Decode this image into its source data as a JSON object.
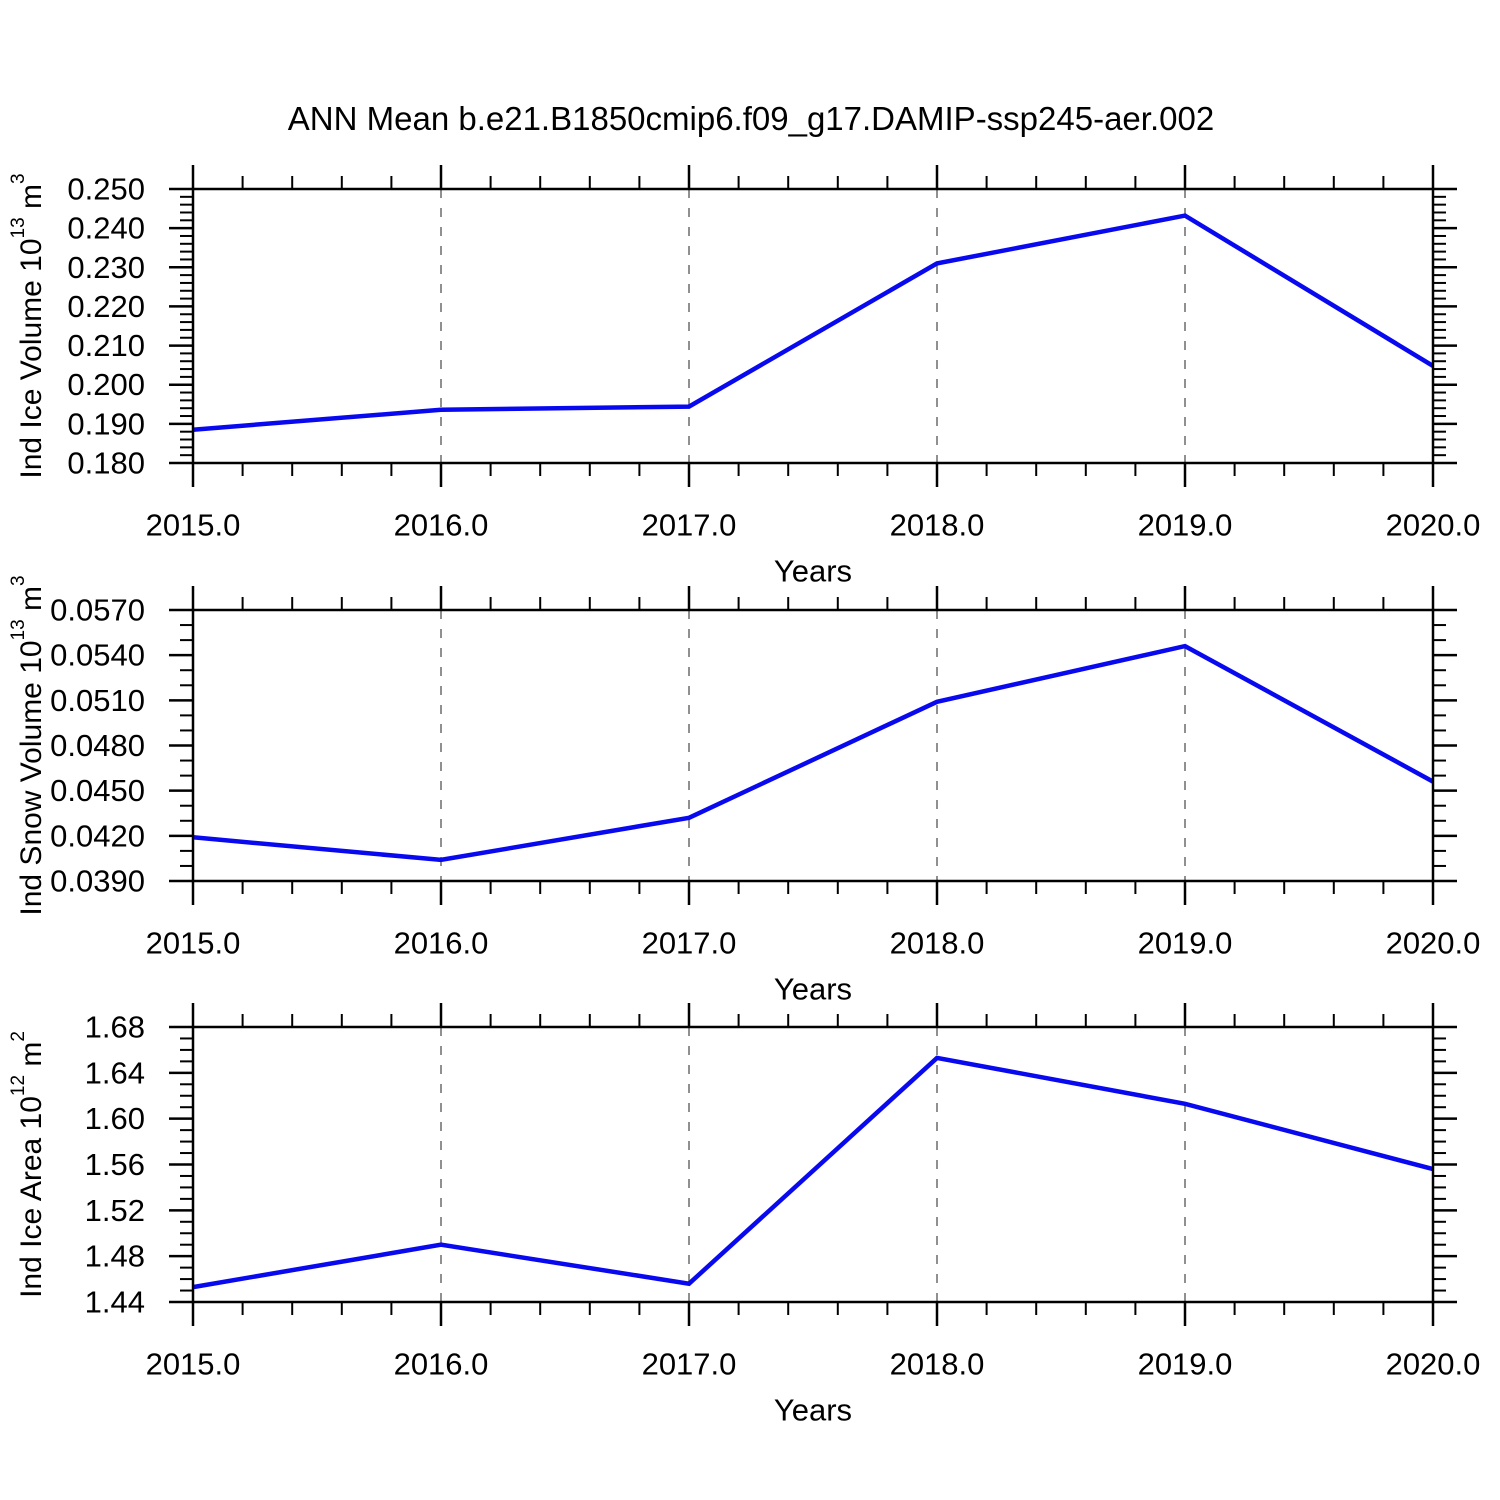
{
  "title": "ANN Mean b.e21.B1850cmip6.f09_g17.DAMIP-ssp245-aer.002",
  "line_color": "#0909f0",
  "grid_color": "#848484",
  "axis_color": "#000000",
  "chart_data": [
    {
      "type": "line",
      "ylabel": "Ind Ice Volume 10^13 m^3",
      "ylabel_parts": [
        {
          "text": "Ind Ice Volume 10"
        },
        {
          "text": "13",
          "sup": true
        },
        {
          "text": " m"
        },
        {
          "text": "3",
          "sup": true
        }
      ],
      "xlabel": "Years",
      "x": [
        2015,
        2016,
        2017,
        2018,
        2019,
        2020
      ],
      "values": [
        0.1885,
        0.1936,
        0.1944,
        0.231,
        0.2432,
        0.2048
      ],
      "xlim": [
        2015,
        2020
      ],
      "ylim": [
        0.18,
        0.25
      ],
      "xticks": [
        2015,
        2016,
        2017,
        2018,
        2019,
        2020
      ],
      "xtick_labels": [
        "2015.0",
        "2016.0",
        "2017.0",
        "2018.0",
        "2019.0",
        "2020.0"
      ],
      "yticks": [
        0.18,
        0.19,
        0.2,
        0.21,
        0.22,
        0.23,
        0.24,
        0.25
      ],
      "ytick_labels": [
        "0.180",
        "0.190",
        "0.200",
        "0.210",
        "0.220",
        "0.230",
        "0.240",
        "0.250"
      ],
      "minor_x_divisions": 5,
      "minor_y_divisions": 5,
      "grid_x": [
        2016,
        2017,
        2018,
        2019
      ],
      "grid_style": "dashed",
      "legend": null
    },
    {
      "type": "line",
      "ylabel": "Ind Snow Volume 10^13 m^3",
      "ylabel_parts": [
        {
          "text": "Ind Snow Volume 10"
        },
        {
          "text": "13",
          "sup": true
        },
        {
          "text": " m"
        },
        {
          "text": "3",
          "sup": true
        }
      ],
      "xlabel": "Years",
      "x": [
        2015,
        2016,
        2017,
        2018,
        2019,
        2020
      ],
      "values": [
        0.0419,
        0.0404,
        0.0432,
        0.0509,
        0.0546,
        0.0456
      ],
      "xlim": [
        2015,
        2020
      ],
      "ylim": [
        0.039,
        0.057
      ],
      "xticks": [
        2015,
        2016,
        2017,
        2018,
        2019,
        2020
      ],
      "xtick_labels": [
        "2015.0",
        "2016.0",
        "2017.0",
        "2018.0",
        "2019.0",
        "2020.0"
      ],
      "yticks": [
        0.039,
        0.042,
        0.045,
        0.048,
        0.051,
        0.054,
        0.057
      ],
      "ytick_labels": [
        "0.0390",
        "0.0420",
        "0.0450",
        "0.0480",
        "0.0510",
        "0.0540",
        "0.0570"
      ],
      "minor_x_divisions": 5,
      "minor_y_divisions": 3,
      "grid_x": [
        2016,
        2017,
        2018,
        2019
      ],
      "grid_style": "dashed",
      "legend": null
    },
    {
      "type": "line",
      "ylabel": "Ind Ice Area 10^12 m^2",
      "ylabel_parts": [
        {
          "text": "Ind Ice Area 10"
        },
        {
          "text": "12",
          "sup": true
        },
        {
          "text": " m"
        },
        {
          "text": "2",
          "sup": true
        }
      ],
      "xlabel": "Years",
      "x": [
        2015,
        2016,
        2017,
        2018,
        2019,
        2020
      ],
      "values": [
        1.453,
        1.49,
        1.456,
        1.653,
        1.613,
        1.556
      ],
      "xlim": [
        2015,
        2020
      ],
      "ylim": [
        1.44,
        1.68
      ],
      "xticks": [
        2015,
        2016,
        2017,
        2018,
        2019,
        2020
      ],
      "xtick_labels": [
        "2015.0",
        "2016.0",
        "2017.0",
        "2018.0",
        "2019.0",
        "2020.0"
      ],
      "yticks": [
        1.44,
        1.48,
        1.52,
        1.56,
        1.6,
        1.64,
        1.68
      ],
      "ytick_labels": [
        "1.44",
        "1.48",
        "1.52",
        "1.56",
        "1.60",
        "1.64",
        "1.68"
      ],
      "minor_x_divisions": 5,
      "minor_y_divisions": 4,
      "grid_x": [
        2016,
        2017,
        2018,
        2019
      ],
      "grid_style": "dashed",
      "legend": null
    }
  ]
}
